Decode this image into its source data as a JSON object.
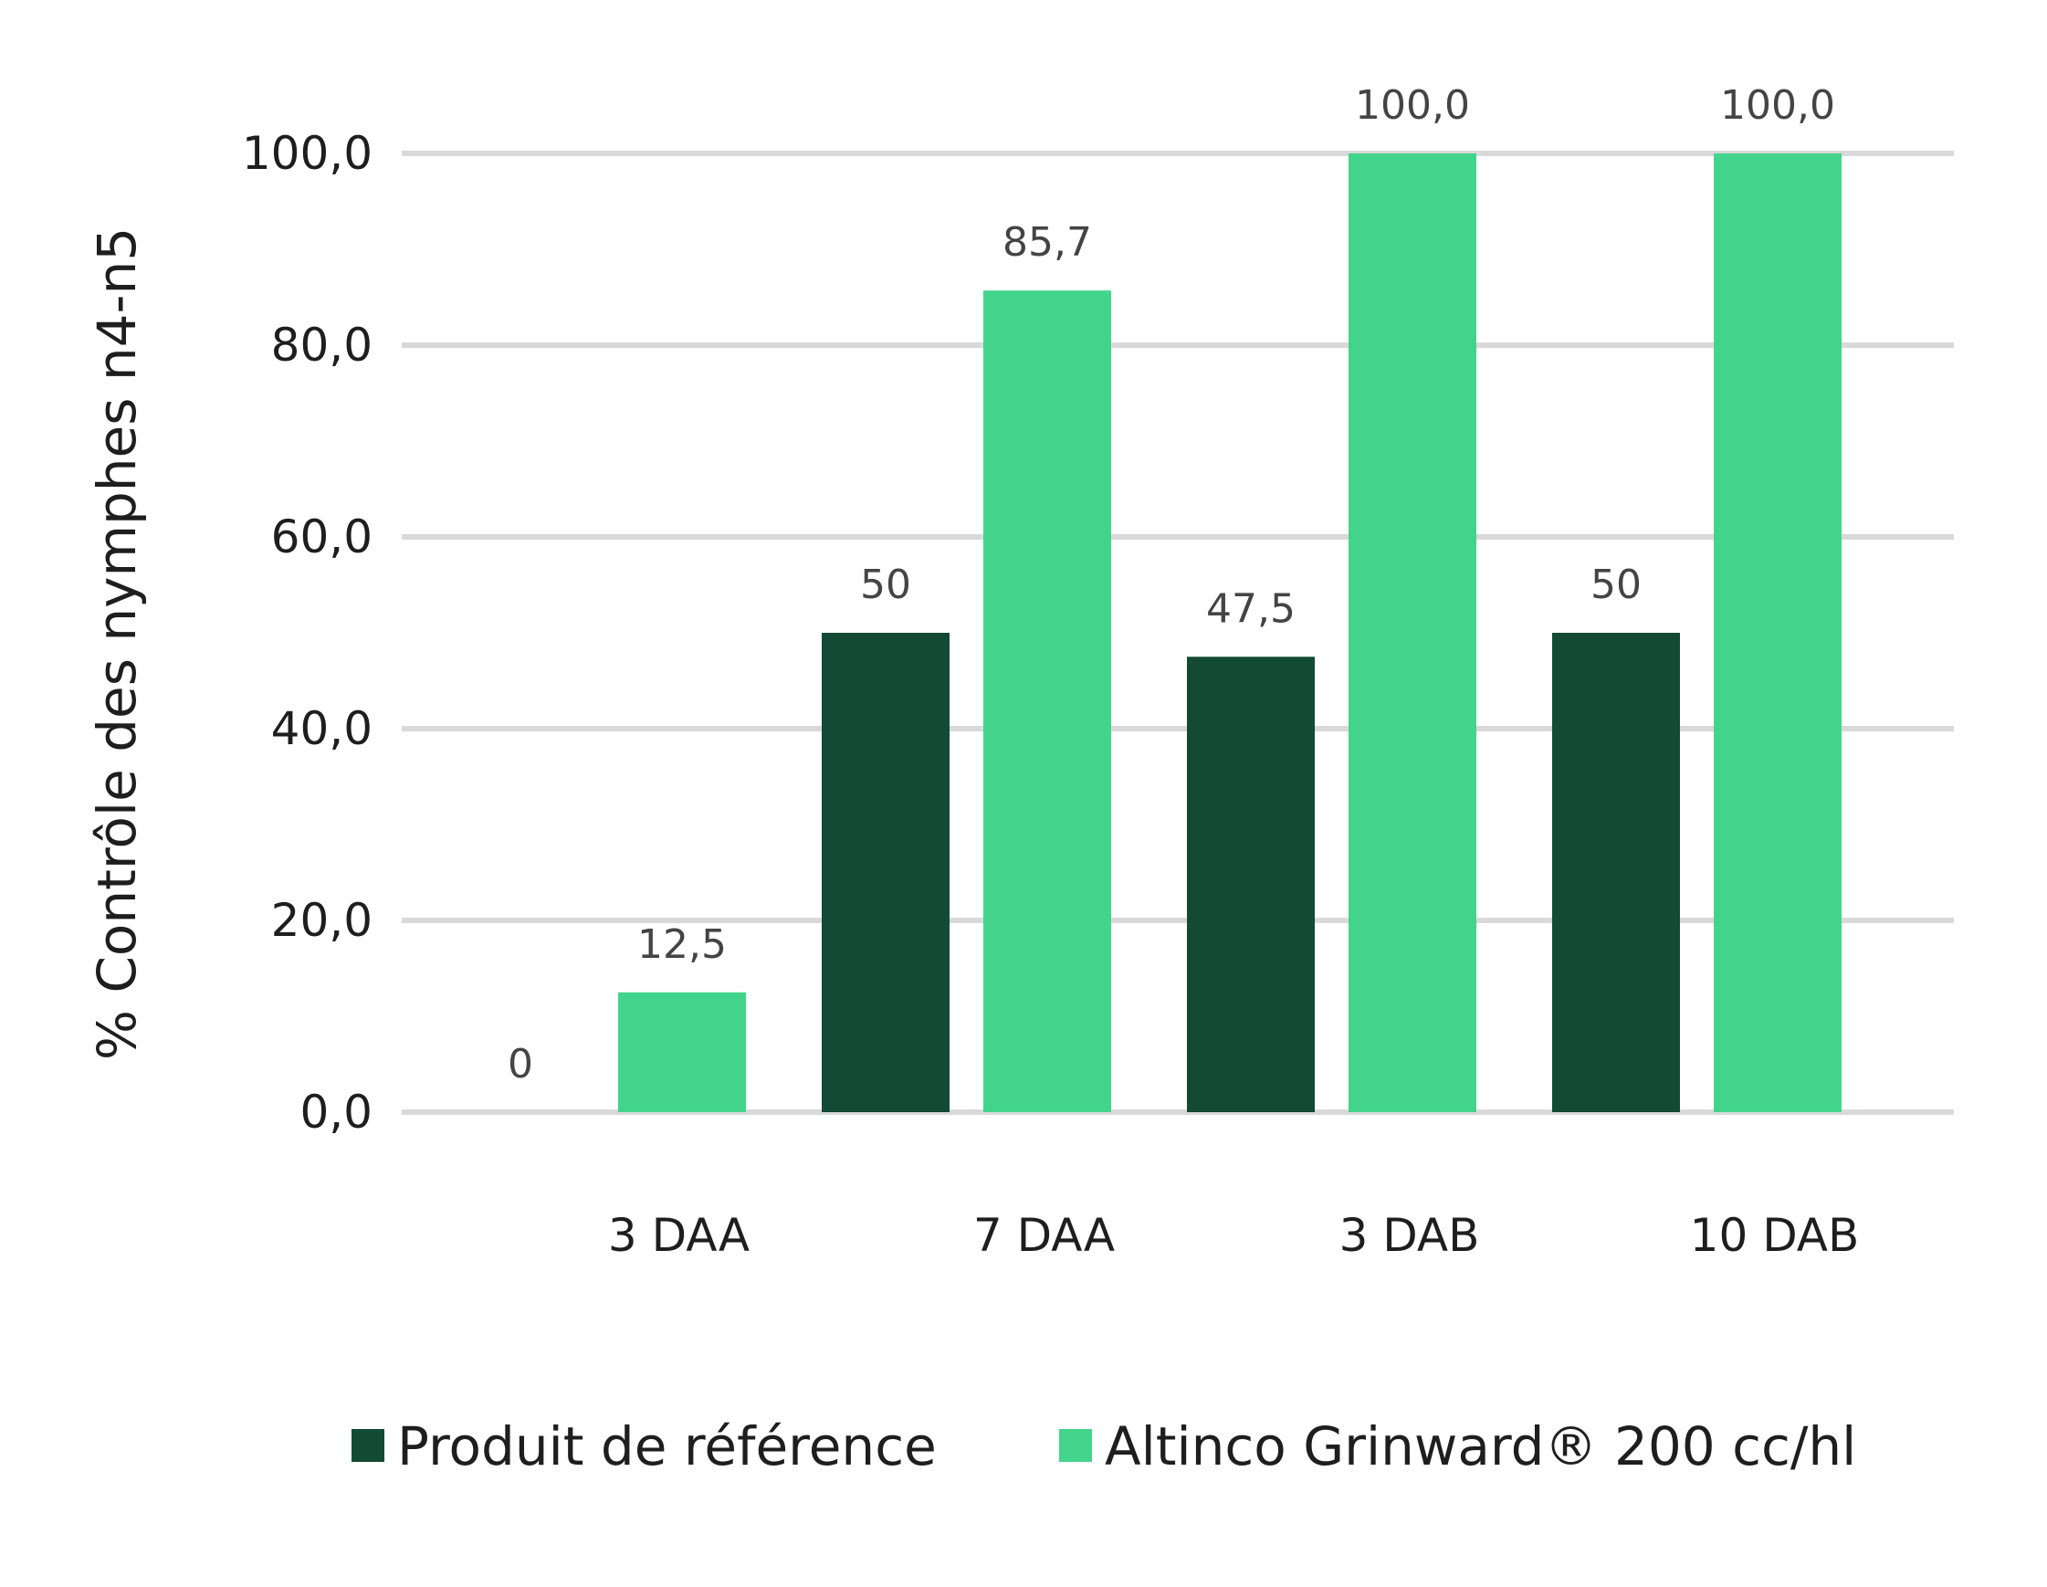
{
  "chart_data": {
    "type": "bar",
    "ylabel": "% Contrôle des nymphes n4-n5",
    "xlabel": "",
    "categories": [
      "3 DAA",
      "7 DAA",
      "3 DAB",
      "10 DAB"
    ],
    "ylim": [
      0,
      100
    ],
    "yticks": [
      "0,0",
      "20,0",
      "40,0",
      "60,0",
      "80,0",
      "100,0"
    ],
    "grid": true,
    "legend_position": "bottom",
    "series": [
      {
        "name": "Produit de référence",
        "color": "#134a35",
        "values": [
          0,
          50,
          47.5,
          50
        ],
        "labels": [
          "0",
          "50",
          "47,5",
          "50"
        ]
      },
      {
        "name": "Altinco Grinward® 200 cc/hl",
        "color": "#43d48c",
        "values": [
          12.5,
          85.7,
          100,
          100
        ],
        "labels": [
          "12,5",
          "85,7",
          "100,0",
          "100,0"
        ]
      }
    ]
  }
}
